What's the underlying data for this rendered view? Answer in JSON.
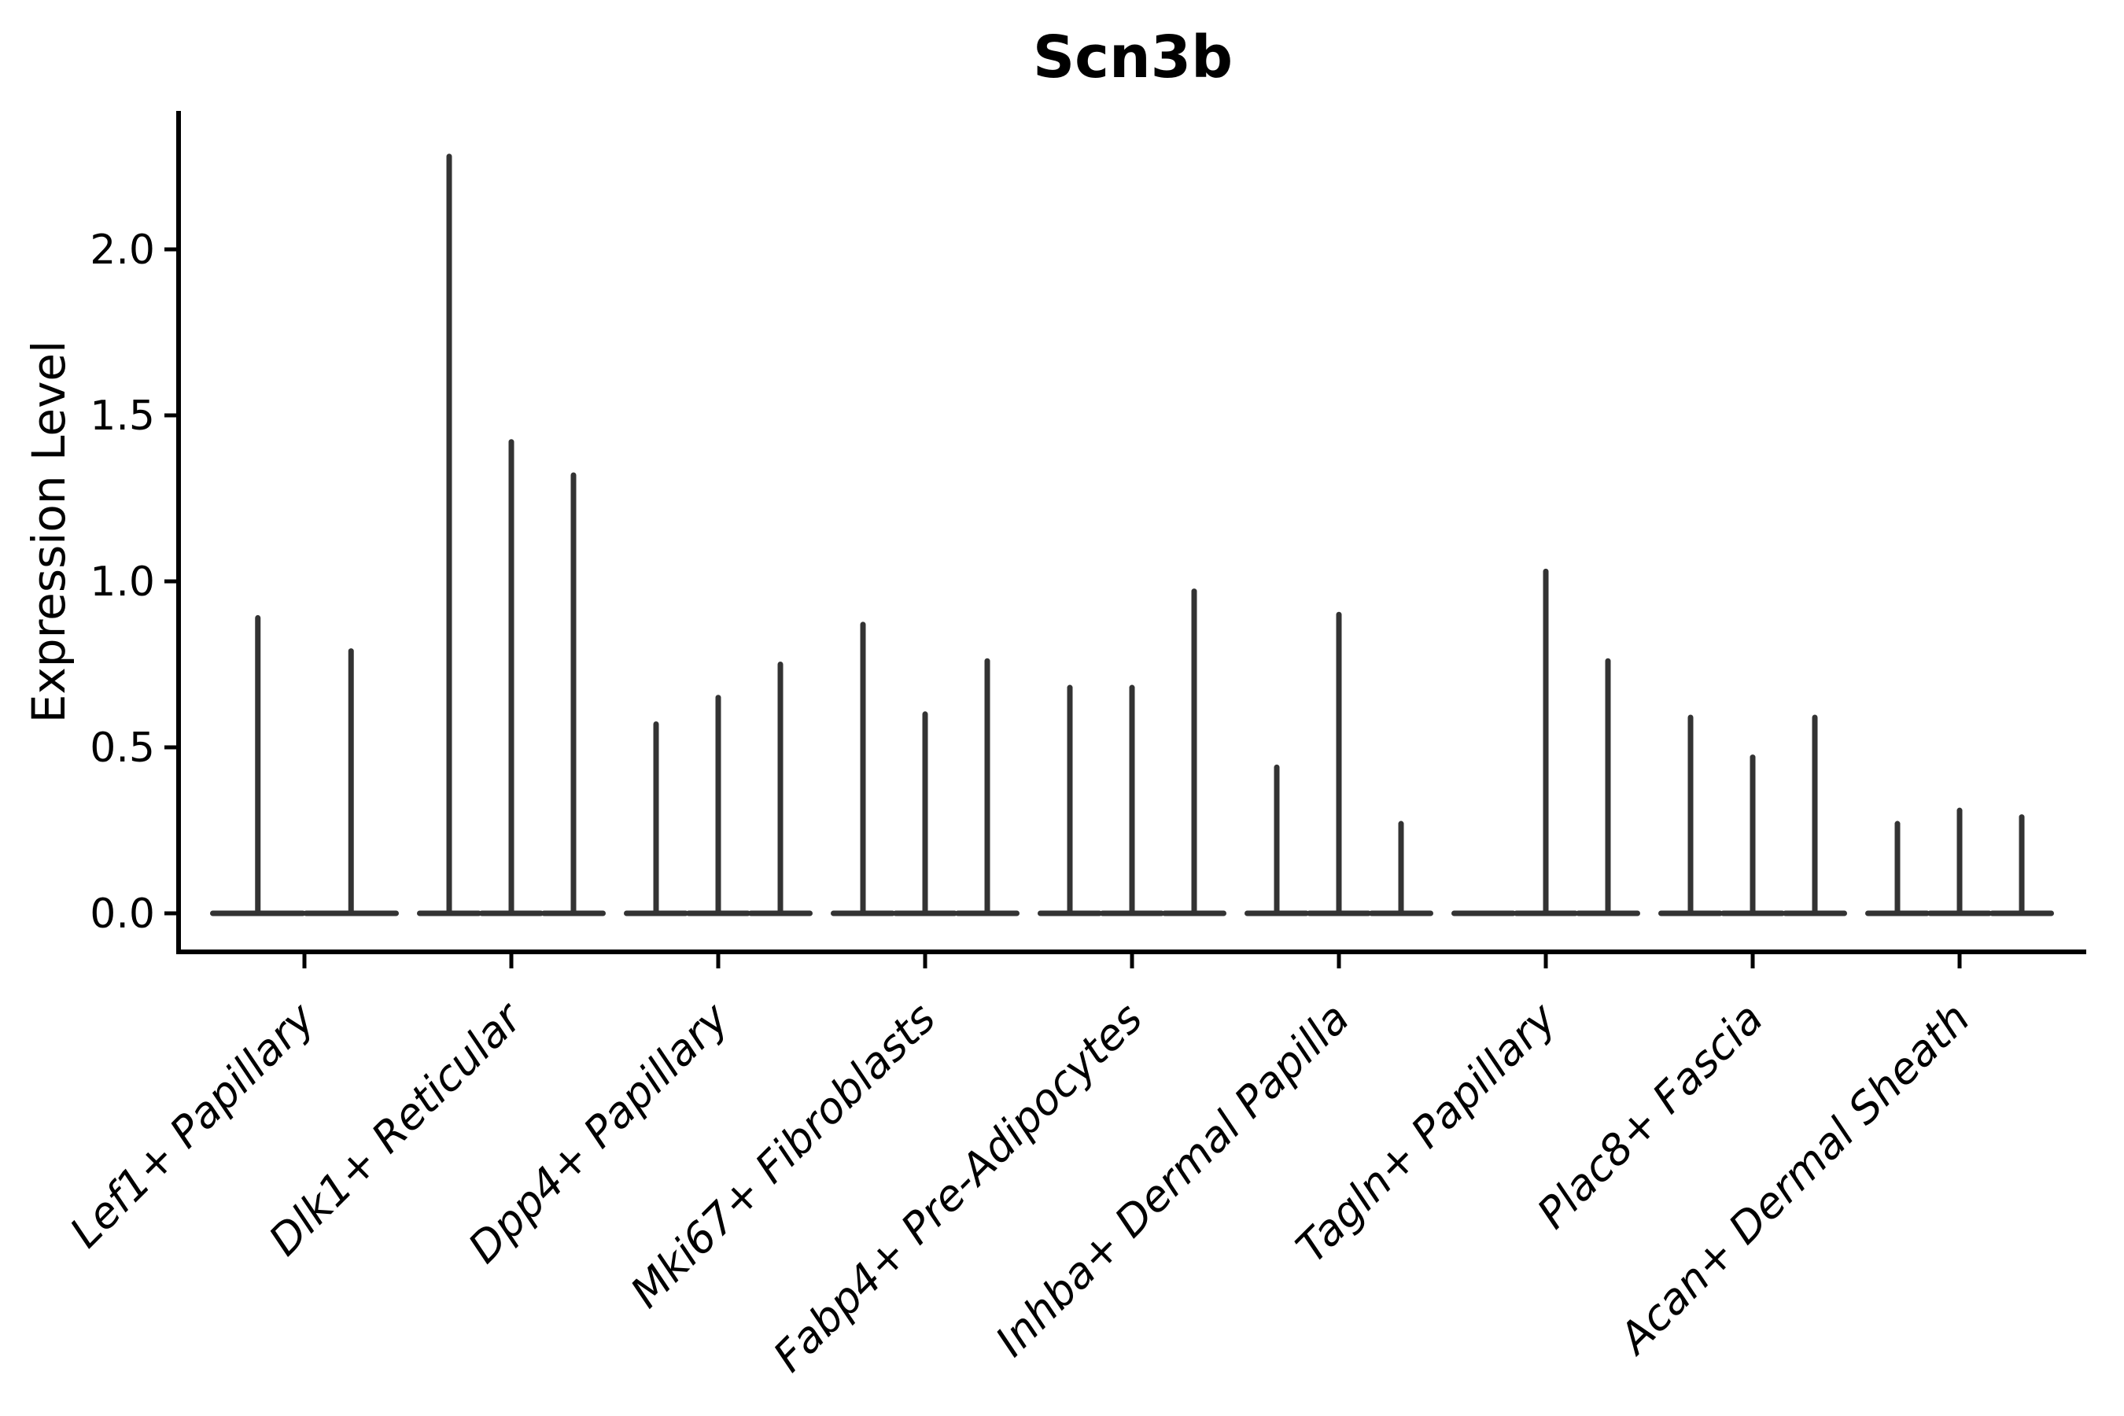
{
  "chart_data": {
    "type": "violin",
    "title": "Scn3b",
    "xlabel": "",
    "ylabel": "Expression Level",
    "yticks": [
      "0.0",
      "0.5",
      "1.0",
      "1.5",
      "2.0"
    ],
    "ytick_values": [
      0.0,
      0.5,
      1.0,
      1.5,
      2.0
    ],
    "ylim": [
      -0.12,
      2.41
    ],
    "grid": false,
    "legend": "none",
    "categories": [
      "Lef1+ Papillary",
      "Dlk1+ Reticular",
      "Dpp4+ Papillary",
      "Mki67+ Fibroblasts",
      "Fabp4+ Pre-Adipocytes",
      "Inhba+ Dermal Papilla",
      "Tagln+ Papillary",
      "Plac8+ Fascia",
      "Acan+ Dermal Sheath"
    ],
    "groups": [
      {
        "label": "Lef1+ Papillary",
        "violin_max_values": [
          0.89,
          0.79
        ]
      },
      {
        "label": "Dlk1+ Reticular",
        "violin_max_values": [
          2.28,
          1.42,
          1.32
        ]
      },
      {
        "label": "Dpp4+ Papillary",
        "violin_max_values": [
          0.57,
          0.65,
          0.75
        ]
      },
      {
        "label": "Mki67+ Fibroblasts",
        "violin_max_values": [
          0.87,
          0.6,
          0.76
        ]
      },
      {
        "label": "Fabp4+ Pre-Adipocytes",
        "violin_max_values": [
          0.68,
          0.68,
          0.97
        ]
      },
      {
        "label": "Inhba+ Dermal Papilla",
        "violin_max_values": [
          0.44,
          0.9,
          0.27
        ]
      },
      {
        "label": "Tagln+ Papillary",
        "violin_max_values": [
          0.0,
          1.03,
          0.76
        ]
      },
      {
        "label": "Plac8+ Fascia",
        "violin_max_values": [
          0.59,
          0.47,
          0.59
        ]
      },
      {
        "label": "Acan+ Dermal Sheath",
        "violin_max_values": [
          0.27,
          0.31,
          0.29
        ]
      }
    ],
    "colors": {
      "violin_stroke": "#333333",
      "axis": "#000000",
      "text": "#000000",
      "background": "#ffffff"
    }
  }
}
